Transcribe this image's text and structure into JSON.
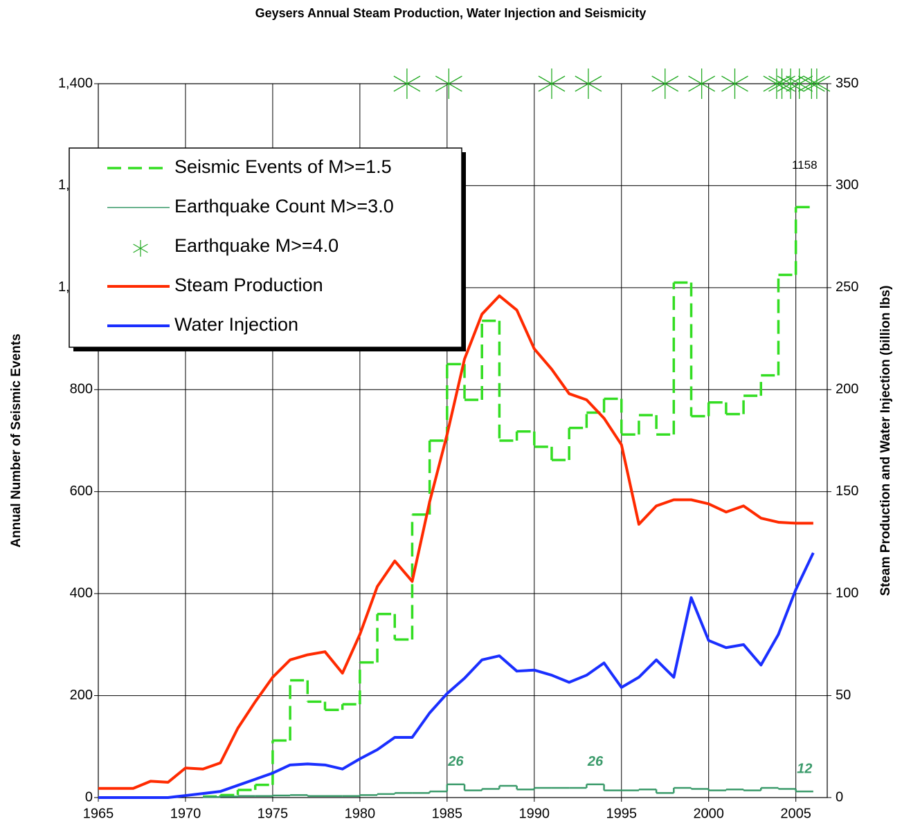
{
  "chart_data": {
    "type": "line",
    "title": "Geysers Annual Steam Production, Water Injection and Seismicity",
    "y_label": "Annual Number of Seismic Events",
    "y2_label": "Steam Production and  Water Injection (billion lbs)",
    "xlim": [
      1965,
      2006.8
    ],
    "xticks": [
      1965,
      1970,
      1975,
      1980,
      1985,
      1990,
      1995,
      2000,
      2005
    ],
    "ylim": [
      0,
      1400
    ],
    "yticks": [
      0,
      200,
      400,
      600,
      800,
      {
        "value": 1000,
        "label": "1,000"
      },
      {
        "value": 1200,
        "label": "1,200"
      },
      {
        "value": 1400,
        "label": "1,400"
      }
    ],
    "y2lim": [
      0,
      350
    ],
    "y2ticks": [
      0,
      50,
      100,
      150,
      200,
      250,
      300,
      350
    ],
    "grid": true,
    "legend": "upper left",
    "series": [
      {
        "name": "Seismic Events of M>=1.5",
        "type": "step",
        "dash": true,
        "color": "#33dd22",
        "x": [
          1971,
          1972,
          1973,
          1974,
          1975,
          1976,
          1977,
          1978,
          1979,
          1980,
          1981,
          1982,
          1983,
          1984,
          1985,
          1986,
          1987,
          1988,
          1989,
          1990,
          1991,
          1992,
          1993,
          1994,
          1995,
          1996,
          1997,
          1998,
          1999,
          2000,
          2001,
          2002,
          2003,
          2004,
          2005
        ],
        "values": [
          2,
          5,
          15,
          25,
          112,
          230,
          188,
          172,
          183,
          265,
          360,
          310,
          555,
          700,
          850,
          780,
          935,
          700,
          718,
          688,
          662,
          725,
          755,
          782,
          712,
          750,
          712,
          1010,
          748,
          775,
          752,
          788,
          828,
          1025,
          1158
        ],
        "value_labels": [
          null,
          null,
          null,
          null,
          null,
          null,
          null,
          null,
          null,
          null,
          null,
          null,
          null,
          null,
          null,
          null,
          null,
          null,
          null,
          null,
          null,
          null,
          null,
          null,
          null,
          null,
          null,
          null,
          null,
          null,
          null,
          null,
          null,
          null,
          "1158"
        ]
      },
      {
        "name": "Earthquake Count M>=3.0",
        "type": "step",
        "dash": false,
        "color": "#3a9a6a",
        "x": [
          1971,
          1972,
          1973,
          1974,
          1975,
          1976,
          1977,
          1978,
          1979,
          1980,
          1981,
          1982,
          1983,
          1984,
          1985,
          1986,
          1987,
          1988,
          1989,
          1990,
          1991,
          1992,
          1993,
          1994,
          1995,
          1996,
          1997,
          1998,
          1999,
          2000,
          2001,
          2002,
          2003,
          2004,
          2005
        ],
        "values": [
          1,
          2,
          3,
          3,
          4,
          5,
          3,
          3,
          3,
          5,
          7,
          9,
          9,
          12,
          26,
          14,
          17,
          23,
          16,
          19,
          19,
          19,
          26,
          14,
          14,
          16,
          9,
          19,
          17,
          14,
          16,
          14,
          19,
          17,
          12
        ],
        "value_labels": [
          null,
          null,
          null,
          null,
          null,
          null,
          null,
          null,
          null,
          null,
          null,
          null,
          null,
          null,
          "26",
          null,
          null,
          null,
          null,
          null,
          null,
          null,
          "26",
          null,
          null,
          null,
          null,
          null,
          null,
          null,
          null,
          null,
          null,
          null,
          "12"
        ]
      },
      {
        "name": "Earthquake M>=4.0",
        "type": "scatter",
        "color": "#22aa22",
        "x": [
          1982.7,
          1985.1,
          1991.0,
          1993.1,
          1997.5,
          1999.6,
          2001.5,
          2003.9,
          2004.2,
          2004.7,
          2005.2,
          2005.9,
          2006.2
        ],
        "values": [
          1400,
          1400,
          1400,
          1400,
          1400,
          1400,
          1400,
          1400,
          1400,
          1400,
          1400,
          1400,
          1400
        ]
      },
      {
        "name": "Steam Production",
        "type": "line",
        "axis": "y2",
        "color": "#ff2a00",
        "x": [
          1965,
          1966,
          1967,
          1968,
          1969,
          1970,
          1971,
          1972,
          1973,
          1974,
          1975,
          1976,
          1977,
          1978,
          1979,
          1980,
          1981,
          1982,
          1983,
          1984,
          1985,
          1986,
          1987,
          1988,
          1989,
          1990,
          1991,
          1992,
          1993,
          1994,
          1995,
          1996,
          1997,
          1998,
          1999,
          2000,
          2001,
          2002,
          2003,
          2004,
          2005,
          2006
        ],
        "values": [
          4.5,
          4.5,
          4.5,
          8,
          7.5,
          14.5,
          14,
          17,
          34,
          47,
          59,
          67.5,
          70,
          71.5,
          61,
          80,
          103.5,
          116,
          106,
          145,
          178,
          215,
          237,
          246,
          239,
          220,
          210,
          198,
          195,
          186,
          173,
          134,
          143,
          146,
          146,
          144,
          140,
          143,
          137,
          135,
          134.5,
          134.5
        ]
      },
      {
        "name": "Water Injection",
        "type": "line",
        "axis": "y2",
        "color": "#1a2fff",
        "x": [
          1965,
          1966,
          1967,
          1968,
          1969,
          1970,
          1971,
          1972,
          1973,
          1974,
          1975,
          1976,
          1977,
          1978,
          1979,
          1980,
          1981,
          1982,
          1983,
          1984,
          1985,
          1986,
          1987,
          1988,
          1989,
          1990,
          1991,
          1992,
          1993,
          1994,
          1995,
          1996,
          1997,
          1998,
          1999,
          2000,
          2001,
          2002,
          2003,
          2004,
          2005,
          2006
        ],
        "values": [
          0,
          0,
          0,
          0,
          0,
          1,
          2,
          3,
          6,
          9,
          12,
          16,
          16.5,
          16,
          14,
          19,
          23.5,
          29.5,
          29.5,
          41.5,
          51,
          58.5,
          67.5,
          69.5,
          62,
          62.5,
          60,
          56.5,
          60,
          66,
          54,
          59,
          67.5,
          59,
          98,
          77,
          73.5,
          75,
          65,
          80,
          102,
          120
        ]
      }
    ]
  }
}
